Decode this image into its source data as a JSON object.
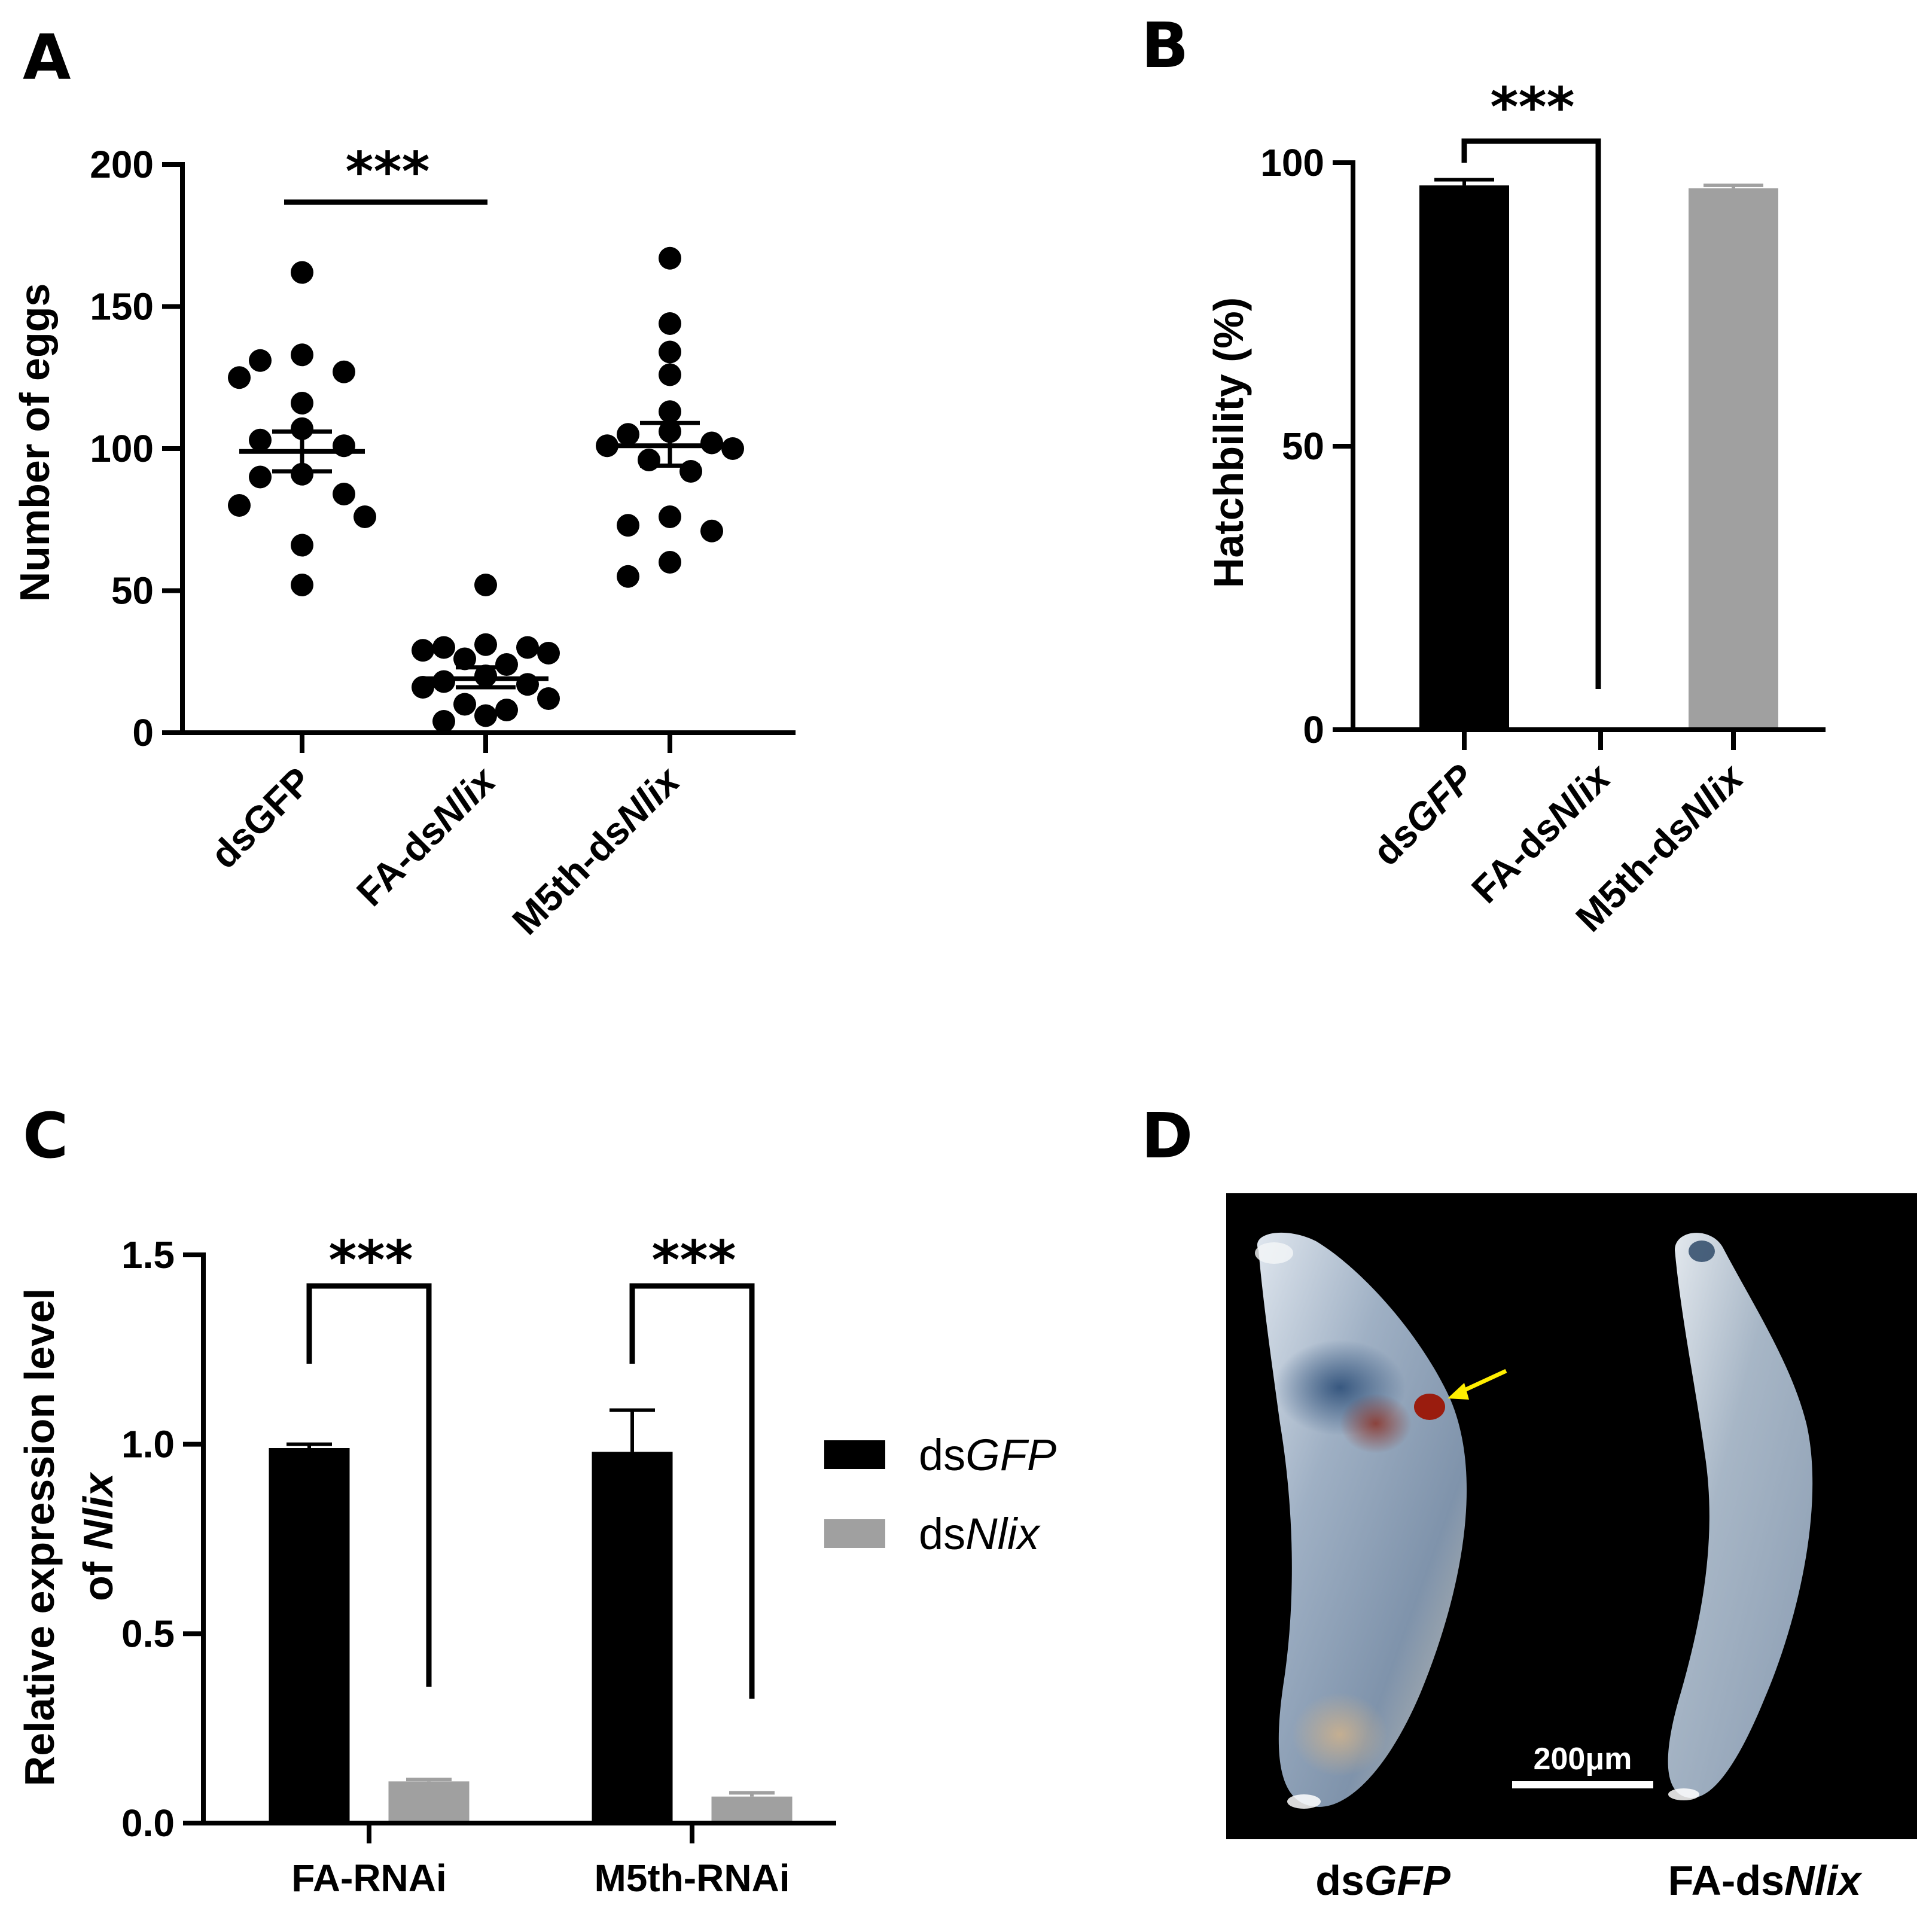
{
  "panels": {
    "A": "A",
    "B": "B",
    "C": "C",
    "D": "D"
  },
  "chart_data": [
    {
      "panel": "A",
      "type": "scatter",
      "ylabel": "Number of eggs",
      "ylim": [
        0,
        200
      ],
      "yticks": [
        "0",
        "50",
        "100",
        "150",
        "200"
      ],
      "categories": [
        {
          "prefix": "ds",
          "italic": "",
          "rest": "GFP"
        },
        {
          "prefix": "FA-ds",
          "italic": "Nlix",
          "rest": ""
        },
        {
          "prefix": "M5th-ds",
          "italic": "Nlix",
          "rest": ""
        }
      ],
      "series": [
        {
          "points": [
            162,
            133,
            131,
            127,
            125,
            116,
            107,
            103,
            101,
            91,
            90,
            84,
            80,
            76,
            66,
            52
          ],
          "mean": 99,
          "sem_low": 92,
          "sem_high": 106,
          "color": "#000000"
        },
        {
          "points": [
            52,
            31,
            30,
            30,
            29,
            28,
            26,
            24,
            20,
            18,
            17,
            16,
            12,
            10,
            8,
            6,
            4
          ],
          "mean": 19,
          "sem_low": 16,
          "sem_high": 23,
          "color": "#000000"
        },
        {
          "points": [
            167,
            144,
            134,
            126,
            113,
            106,
            105,
            102,
            101,
            100,
            96,
            92,
            76,
            73,
            71,
            60,
            55
          ],
          "mean": 101,
          "sem_low": 94,
          "sem_high": 109,
          "color": "#000000"
        }
      ],
      "significance": {
        "label": "***",
        "between": [
          0,
          1
        ]
      }
    },
    {
      "panel": "B",
      "type": "bar",
      "ylabel": "Hatchbility (%)",
      "ylim": [
        0,
        100
      ],
      "yticks": [
        "0",
        "50",
        "100"
      ],
      "categories": [
        {
          "prefix": "ds",
          "italic": "GFP",
          "rest": ""
        },
        {
          "prefix": "FA-ds",
          "italic": "Nlix",
          "rest": ""
        },
        {
          "prefix": "M5th-ds",
          "italic": "Nlix",
          "rest": ""
        }
      ],
      "values": [
        96,
        0,
        95.5
      ],
      "errors": [
        1,
        0,
        0.5
      ],
      "colors": [
        "#000000",
        "#000000",
        "#a0a0a0"
      ],
      "significance": {
        "label": "***",
        "between": [
          0,
          1
        ]
      }
    },
    {
      "panel": "C",
      "type": "bar",
      "ylabel": "Relative expression level",
      "ylabel2_prefix": "of ",
      "ylabel2_italic": "Nlix",
      "ylim": [
        0,
        1.5
      ],
      "yticks": [
        "0.0",
        "0.5",
        "1.0",
        "1.5"
      ],
      "categories": [
        "FA-RNAi",
        "M5th-RNAi"
      ],
      "series": [
        {
          "prefix": "ds",
          "italic": "GFP",
          "color": "#000000",
          "values": [
            0.99,
            0.98
          ],
          "errors": [
            0.01,
            0.11
          ]
        },
        {
          "prefix": "ds",
          "italic": "Nlix",
          "color": "#a0a0a0",
          "values": [
            0.11,
            0.07
          ],
          "errors": [
            0.005,
            0.01
          ]
        }
      ],
      "significance": [
        {
          "label": "***",
          "group": 0
        },
        {
          "label": "***",
          "group": 1
        }
      ]
    }
  ],
  "photo": {
    "panel": "D",
    "scale_bar": "200μm",
    "labels": [
      {
        "prefix": "ds",
        "italic": "GFP"
      },
      {
        "prefix": "FA-ds",
        "italic": "Nlix"
      }
    ],
    "arrow_color": "#ffee00"
  }
}
